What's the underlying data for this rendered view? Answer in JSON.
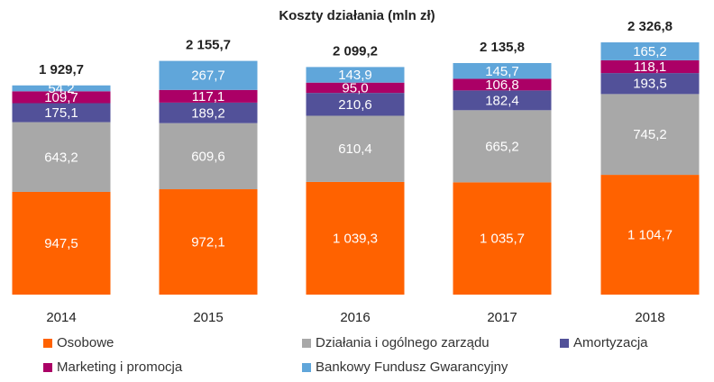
{
  "chart_data": {
    "type": "bar",
    "stacked": true,
    "title": "Koszty działania (mln zł)",
    "categories": [
      "2014",
      "2015",
      "2016",
      "2017",
      "2018"
    ],
    "series": [
      {
        "name": "Osobowe",
        "color": "#ff6200",
        "values": [
          947.5,
          972.1,
          1039.3,
          1035.7,
          1104.7
        ],
        "labels": [
          "947,5",
          "972,1",
          "1 039,3",
          "1 035,7",
          "1 104,7"
        ]
      },
      {
        "name": "Działania i ogólnego zarządu",
        "color": "#a8a8a8",
        "values": [
          643.2,
          609.6,
          610.4,
          665.2,
          745.2
        ],
        "labels": [
          "643,2",
          "609,6",
          "610,4",
          "665,2",
          "745,2"
        ]
      },
      {
        "name": "Amortyzacja",
        "color": "#525199",
        "values": [
          175.1,
          189.2,
          210.6,
          182.4,
          193.5
        ],
        "labels": [
          "175,1",
          "189,2",
          "210,6",
          "182,4",
          "193,5"
        ]
      },
      {
        "name": "Marketing i promocja",
        "color": "#ab0066",
        "values": [
          109.7,
          117.1,
          95.0,
          106.8,
          118.1
        ],
        "labels": [
          "109,7",
          "117,1",
          "95,0",
          "106,8",
          "118,1"
        ]
      },
      {
        "name": "Bankowy Fundusz Gwarancyjny",
        "color": "#60a6da",
        "values": [
          54.2,
          267.7,
          143.9,
          145.7,
          165.2
        ],
        "labels": [
          "54,2",
          "267,7",
          "143,9",
          "145,7",
          "165,2"
        ]
      }
    ],
    "totals": [
      1929.7,
      2155.7,
      2099.2,
      2135.8,
      2326.8
    ],
    "total_labels": [
      "1 929,7",
      "2 155,7",
      "2 099,2",
      "2 135,8",
      "2 326,8"
    ],
    "ylim": [
      0,
      2326.8
    ],
    "legend_position": "bottom",
    "grid": false
  }
}
